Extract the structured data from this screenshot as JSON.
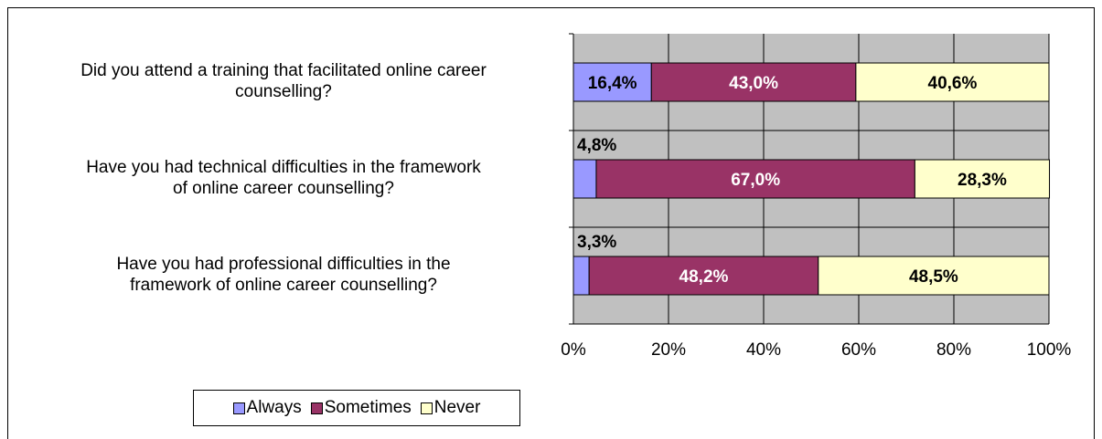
{
  "chart_data": {
    "type": "bar",
    "orientation": "horizontal",
    "stacked": "percent",
    "categories": [
      "Did you attend a training that facilitated online career counselling?",
      "Have you had technical difficulties in the framework of online career counselling?",
      "Have you had professional difficulties in the framework of online career counselling?"
    ],
    "category_lines": [
      [
        "Did you attend a training that facilitated online career",
        "counselling?"
      ],
      [
        "Have you had technical difficulties in the framework",
        "of online career counselling?"
      ],
      [
        "Have you had professional difficulties in the",
        "framework of online career counselling?"
      ]
    ],
    "series": [
      {
        "name": "Always",
        "color": "#9999ff",
        "values": [
          16.4,
          4.8,
          3.3
        ],
        "labels": [
          "16,4%",
          "4,8%",
          "3,3%"
        ]
      },
      {
        "name": "Sometimes",
        "color": "#993366",
        "values": [
          43.0,
          67.0,
          48.2
        ],
        "labels": [
          "43,0%",
          "67,0%",
          "48,2%"
        ]
      },
      {
        "name": "Never",
        "color": "#ffffcc",
        "values": [
          40.6,
          28.3,
          48.5
        ],
        "labels": [
          "40,6%",
          "28,3%",
          "48,5%"
        ]
      }
    ],
    "xlim": [
      0,
      100
    ],
    "xticks": [
      "0%",
      "20%",
      "40%",
      "60%",
      "80%",
      "100%"
    ],
    "plot_background": "#c0c0c0",
    "grid": true,
    "legend": "bottom"
  }
}
